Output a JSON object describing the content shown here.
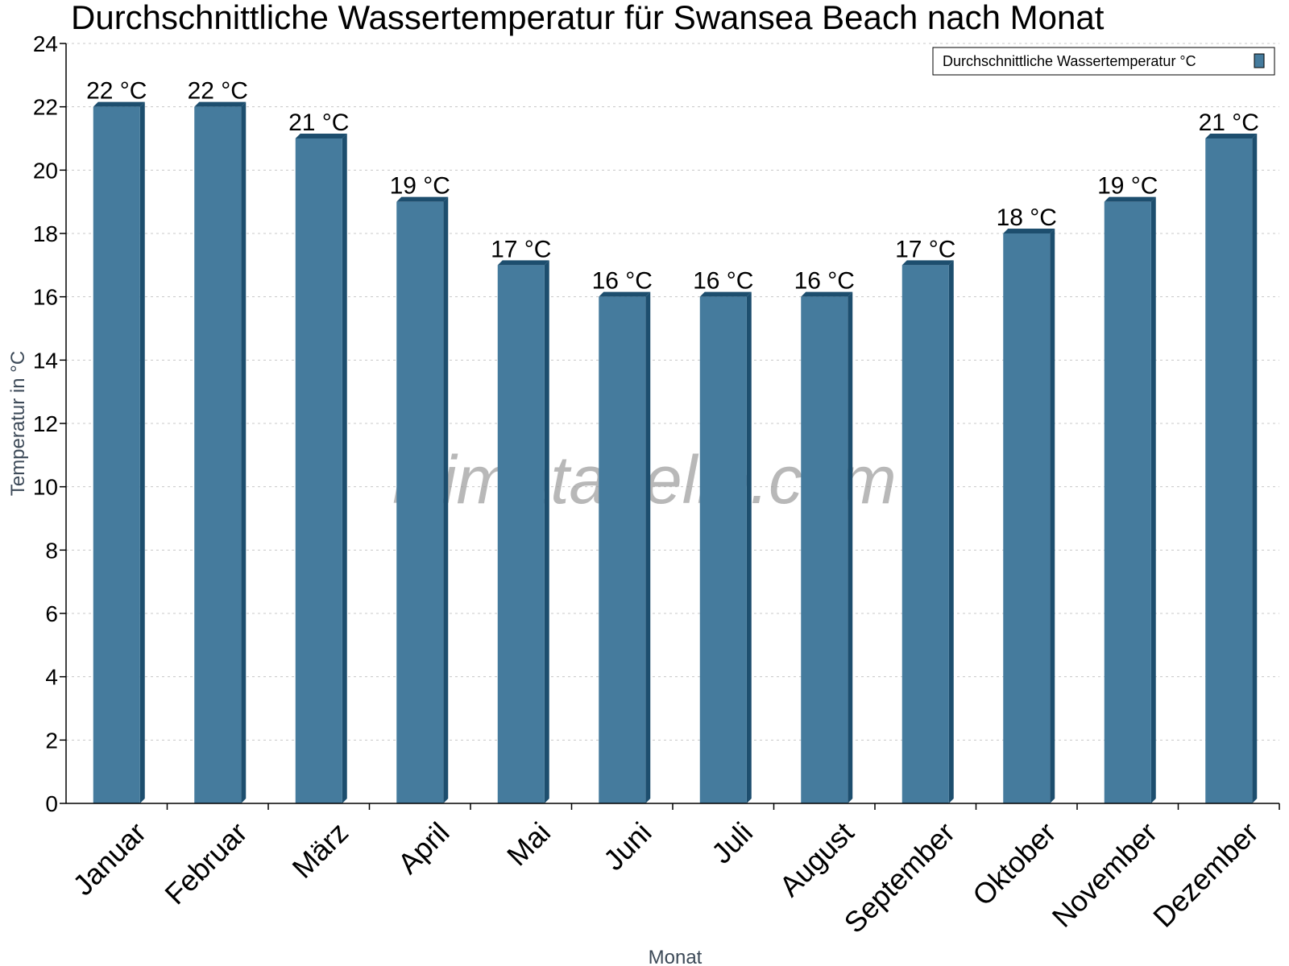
{
  "chart_data": {
    "type": "bar",
    "title": "Durchschnittliche Wassertemperatur für Swansea Beach nach Monat",
    "xlabel": "Monat",
    "ylabel": "Temperatur in °C",
    "categories": [
      "Januar",
      "Februar",
      "März",
      "April",
      "Mai",
      "Juni",
      "Juli",
      "August",
      "September",
      "Oktober",
      "November",
      "Dezember"
    ],
    "series": [
      {
        "name": "Durchschnittliche Wassertemperatur °C",
        "values": [
          22,
          22,
          21,
          19,
          17,
          16,
          16,
          16,
          17,
          18,
          19,
          21
        ],
        "labels": [
          "22 °C",
          "22 °C",
          "21 °C",
          "19 °C",
          "17 °C",
          "16 °C",
          "16 °C",
          "16 °C",
          "17 °C",
          "18 °C",
          "19 °C",
          "21 °C"
        ]
      }
    ],
    "ylim": [
      0,
      24
    ],
    "yticks": [
      "0",
      "2",
      "4",
      "6",
      "8",
      "10",
      "12",
      "14",
      "16",
      "18",
      "20",
      "22",
      "24"
    ],
    "grid": true,
    "legend_position": "top-right",
    "colors": {
      "bar": "#457b9d",
      "bar_side": "#1d4e6e",
      "grid": "#c8c8c8",
      "axis": "#000000"
    },
    "watermark": "klimatabelle.com"
  }
}
